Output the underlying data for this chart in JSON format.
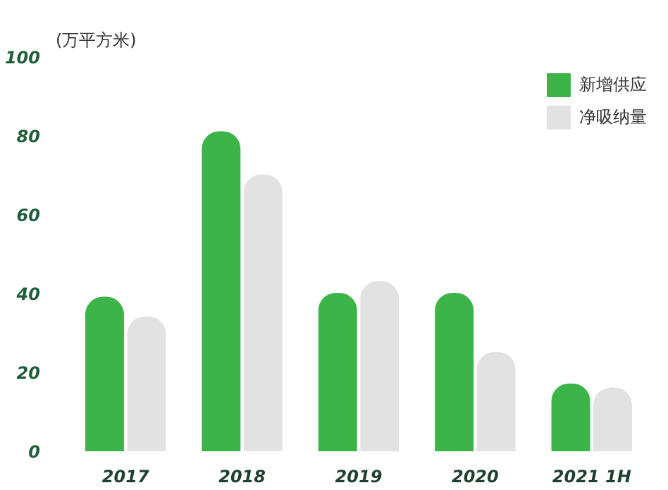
{
  "chart_data": {
    "type": "bar",
    "ylabel": "(万平方米)",
    "categories": [
      "2017",
      "2018",
      "2019",
      "2020",
      "2021 1H"
    ],
    "series": [
      {
        "name": "新增供应",
        "color": "#3cb44a",
        "values": [
          39,
          81,
          40,
          40,
          17
        ]
      },
      {
        "name": "净吸纳量",
        "color": "#e2e2e2",
        "values": [
          34,
          70,
          43,
          25,
          16
        ]
      }
    ],
    "ylim": [
      0,
      100
    ],
    "yticks": [
      0,
      20,
      40,
      60,
      80,
      100
    ],
    "grid": false,
    "legend": "top right"
  }
}
